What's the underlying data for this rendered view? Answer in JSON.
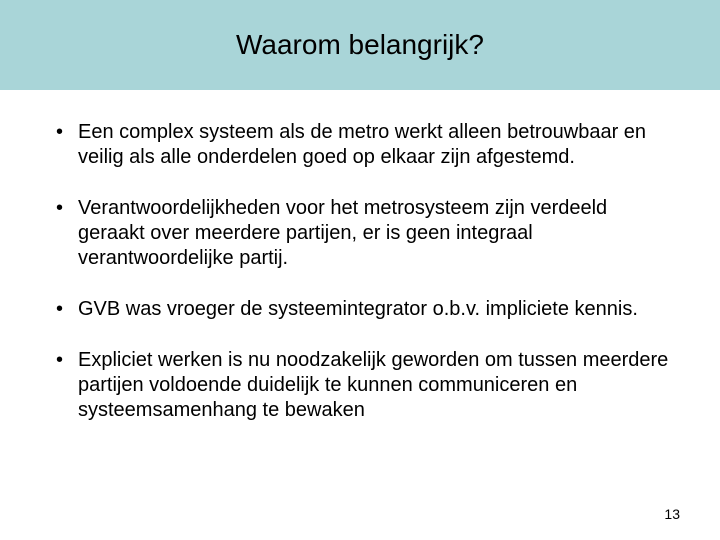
{
  "slide": {
    "title": "Waarom belangrijk?",
    "title_bar_color": "#a9d5d8",
    "title_fontsize": 28,
    "title_color": "#000000",
    "body_fontsize": 20,
    "body_color": "#000000",
    "background_color": "#ffffff",
    "bullets": [
      "Een complex systeem als de metro werkt alleen betrouwbaar en veilig als alle onderdelen goed op elkaar zijn afgestemd.",
      "Verantwoordelijkheden voor het  metrosysteem  zijn verdeeld geraakt over meerdere partijen, er is geen integraal verantwoordelijke partij.",
      "GVB was  vroeger de systeemintegrator o.b.v. impliciete kennis.",
      "Expliciet werken is nu noodzakelijk geworden om tussen meerdere partijen voldoende duidelijk te kunnen communiceren en systeemsamenhang te bewaken"
    ],
    "page_number": "13"
  }
}
